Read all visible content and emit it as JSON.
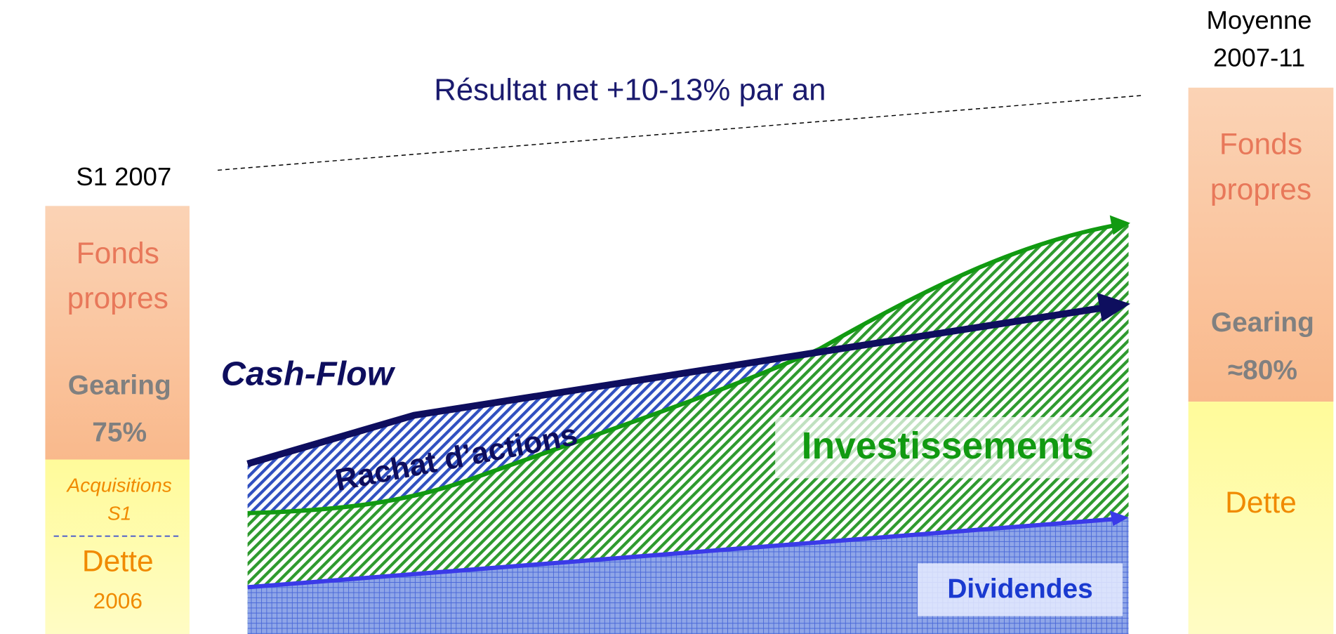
{
  "header": {
    "note": "Résultat net +10-13% par an"
  },
  "left_bar": {
    "label": "S1 2007",
    "equity": [
      "Fonds",
      "propres"
    ],
    "gearing_label": "Gearing",
    "gearing_value": "75%",
    "acquisitions": [
      "Acquisitions",
      "S1"
    ],
    "debt": "Dette",
    "debt_year": "2006"
  },
  "right_bar": {
    "label": [
      "Moyenne",
      "2007-11"
    ],
    "equity": [
      "Fonds",
      "propres"
    ],
    "gearing_label": "Gearing",
    "gearing_value": "≈80%",
    "debt": "Dette"
  },
  "flows": {
    "cash_flow": "Cash-Flow",
    "buyback": "Rachat d’actions",
    "investments": "Investissements",
    "dividends": "Dividendes"
  }
}
